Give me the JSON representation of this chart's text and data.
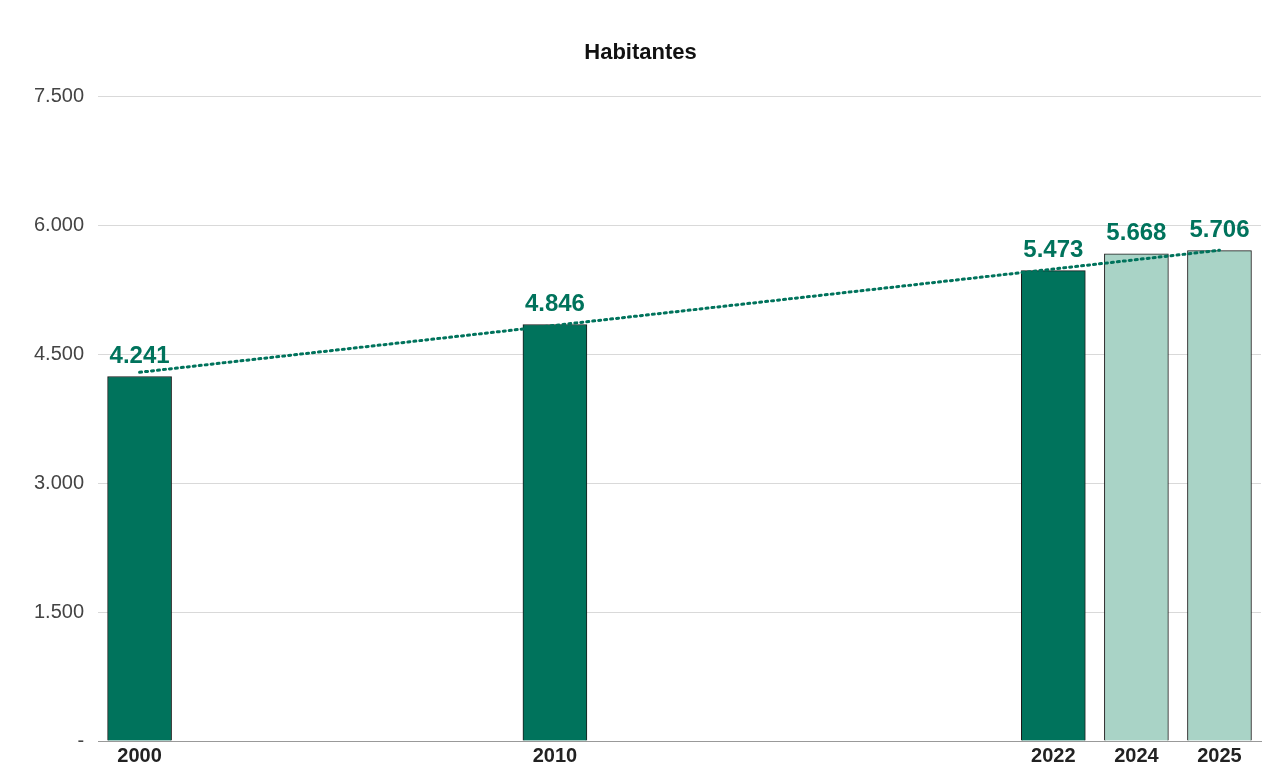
{
  "chart_data": {
    "type": "bar",
    "title": "Habitantes",
    "categories": [
      "2000",
      null,
      null,
      null,
      null,
      "2010",
      null,
      null,
      null,
      null,
      null,
      "2022",
      "2024",
      "2025"
    ],
    "series": [
      {
        "values": [
          4241,
          null,
          null,
          null,
          null,
          4846,
          null,
          null,
          null,
          null,
          null,
          5473,
          5668,
          5706
        ],
        "colors": [
          "#00735c",
          null,
          null,
          null,
          null,
          "#00735c",
          null,
          null,
          null,
          null,
          null,
          "#00735c",
          "#a9d3c6",
          "#a9d3c6"
        ],
        "value_labels": [
          "4.241",
          null,
          null,
          null,
          null,
          "4.846",
          null,
          null,
          null,
          null,
          null,
          "5.473",
          "5.668",
          "5.706"
        ]
      },
      {
        "type": "line",
        "values": [
          4290,
          null,
          null,
          null,
          null,
          null,
          null,
          null,
          null,
          null,
          null,
          null,
          null,
          5710
        ],
        "color": "#00735c",
        "line_style": "dotted",
        "marker": "none"
      }
    ],
    "ylim": [
      0,
      7500
    ],
    "yticks": [
      {
        "value": 0,
        "label": "-"
      },
      {
        "value": 1500,
        "label": "1.500"
      },
      {
        "value": 3000,
        "label": "3.000"
      },
      {
        "value": 4500,
        "label": "4.500"
      },
      {
        "value": 6000,
        "label": "6.000"
      },
      {
        "value": 7500,
        "label": "7.500"
      }
    ],
    "grid": "y",
    "legend": false
  }
}
